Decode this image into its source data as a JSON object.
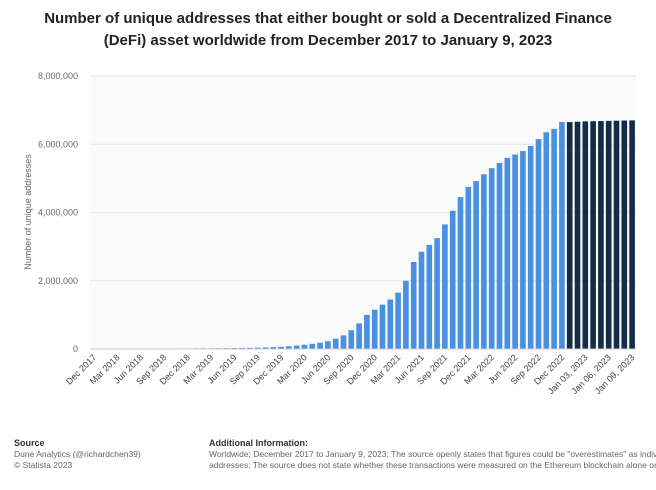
{
  "chart_data": {
    "type": "bar",
    "title_lines": [
      "Number of unique addresses that either bought or sold a Decentralized Finance",
      "(DeFi) asset worldwide from December 2017 to January 9, 2023"
    ],
    "ylabel": "Number of unique addresses",
    "xlabel": "",
    "ylim": [
      0,
      8000000
    ],
    "yticks": [
      0,
      2000000,
      4000000,
      6000000,
      8000000
    ],
    "ytick_labels": [
      "0",
      "2,000,000",
      "4,000,000",
      "6,000,000",
      "8,000,000"
    ],
    "grid": true,
    "colors": {
      "monthly": "#4a90e2",
      "weekly": "#132c48",
      "grid": "#e6e6e6",
      "background": "#fafafa"
    },
    "categories": [
      "Dec 2017",
      "Jan 2018",
      "Feb 2018",
      "Mar 2018",
      "Apr 2018",
      "May 2018",
      "Jun 2018",
      "Jul 2018",
      "Aug 2018",
      "Sep 2018",
      "Oct 2018",
      "Nov 2018",
      "Dec 2018",
      "Jan 2019",
      "Feb 2019",
      "Mar 2019",
      "Apr 2019",
      "May 2019",
      "Jun 2019",
      "Jul 2019",
      "Aug 2019",
      "Sep 2019",
      "Oct 2019",
      "Nov 2019",
      "Dec 2019",
      "Jan 2020",
      "Feb 2020",
      "Mar 2020",
      "Apr 2020",
      "May 2020",
      "Jun 2020",
      "Jul 2020",
      "Aug 2020",
      "Sep 2020",
      "Oct 2020",
      "Nov 2020",
      "Dec 2020",
      "Jan 2021",
      "Feb 2021",
      "Mar 2021",
      "Apr 2021",
      "May 2021",
      "Jun 2021",
      "Jul 2021",
      "Aug 2021",
      "Sep 2021",
      "Oct 2021",
      "Nov 2021",
      "Dec 2021",
      "Jan 2022",
      "Feb 2022",
      "Mar 2022",
      "Apr 2022",
      "May 2022",
      "Jun 2022",
      "Jul 2022",
      "Aug 2022",
      "Sep 2022",
      "Oct 2022",
      "Nov 2022",
      "Dec 2022",
      "Jan 01, 2023",
      "Jan 02, 2023",
      "Jan 03, 2023",
      "Jan 04, 2023",
      "Jan 05, 2023",
      "Jan 06, 2023",
      "Jan 07, 2023",
      "Jan 08, 2023",
      "Jan 09, 2023"
    ],
    "values": [
      3000,
      5000,
      7000,
      9000,
      10000,
      11000,
      12000,
      13000,
      14000,
      15000,
      16000,
      17000,
      18000,
      19000,
      20000,
      21000,
      23000,
      25000,
      28000,
      30000,
      33000,
      38000,
      45000,
      55000,
      65000,
      80000,
      100000,
      125000,
      150000,
      185000,
      230000,
      300000,
      400000,
      550000,
      750000,
      1000000,
      1150000,
      1300000,
      1450000,
      1650000,
      2000000,
      2550000,
      2850000,
      3050000,
      3250000,
      3650000,
      4050000,
      4450000,
      4750000,
      4920000,
      5120000,
      5300000,
      5450000,
      5600000,
      5700000,
      5800000,
      5950000,
      6150000,
      6350000,
      6450000,
      6650000,
      6650000,
      6660000,
      6670000,
      6675000,
      6680000,
      6685000,
      6690000,
      6695000,
      6700000
    ],
    "series_type": [
      "monthly",
      "monthly",
      "monthly",
      "monthly",
      "monthly",
      "monthly",
      "monthly",
      "monthly",
      "monthly",
      "monthly",
      "monthly",
      "monthly",
      "monthly",
      "monthly",
      "monthly",
      "monthly",
      "monthly",
      "monthly",
      "monthly",
      "monthly",
      "monthly",
      "monthly",
      "monthly",
      "monthly",
      "monthly",
      "monthly",
      "monthly",
      "monthly",
      "monthly",
      "monthly",
      "monthly",
      "monthly",
      "monthly",
      "monthly",
      "monthly",
      "monthly",
      "monthly",
      "monthly",
      "monthly",
      "monthly",
      "monthly",
      "monthly",
      "monthly",
      "monthly",
      "monthly",
      "monthly",
      "monthly",
      "monthly",
      "monthly",
      "monthly",
      "monthly",
      "monthly",
      "monthly",
      "monthly",
      "monthly",
      "monthly",
      "monthly",
      "monthly",
      "monthly",
      "monthly",
      "monthly",
      "weekly",
      "weekly",
      "weekly",
      "weekly",
      "weekly",
      "weekly",
      "weekly",
      "weekly",
      "weekly"
    ],
    "xtick_indices": [
      0,
      3,
      6,
      9,
      12,
      15,
      18,
      21,
      24,
      27,
      30,
      33,
      36,
      39,
      42,
      45,
      48,
      51,
      54,
      57,
      60,
      63,
      66,
      69
    ],
    "xtick_labels": [
      "Dec 2017",
      "Mar 2018",
      "Jun 2018",
      "Sep 2018",
      "Dec 2018",
      "Mar 2019",
      "Jun 2019",
      "Sep 2019",
      "Dec 2019",
      "Mar 2020",
      "Jun 2020",
      "Sep 2020",
      "Dec 2020",
      "Mar 2021",
      "Jun 2021",
      "Sep 2021",
      "Dec 2021",
      "Mar 2022",
      "Jun 2022",
      "Sep 2022",
      "Dec 2022",
      "Jan 03, 2023",
      "Jan 06, 2023",
      "Jan 09, 2023"
    ]
  },
  "footer": {
    "source_heading": "Source",
    "source_lines": [
      "Dune Analytics (@richardchen39)",
      "© Statista 2023"
    ],
    "info_heading": "Additional Information:",
    "info_lines": [
      "Worldwide; December 2017 to January 9, 2023; The source openly states that figures could be \"overestimates\" as individuals",
      "addresses; The source does not state whether these transactions were measured on the Ethereum blockchain alone or on"
    ]
  }
}
